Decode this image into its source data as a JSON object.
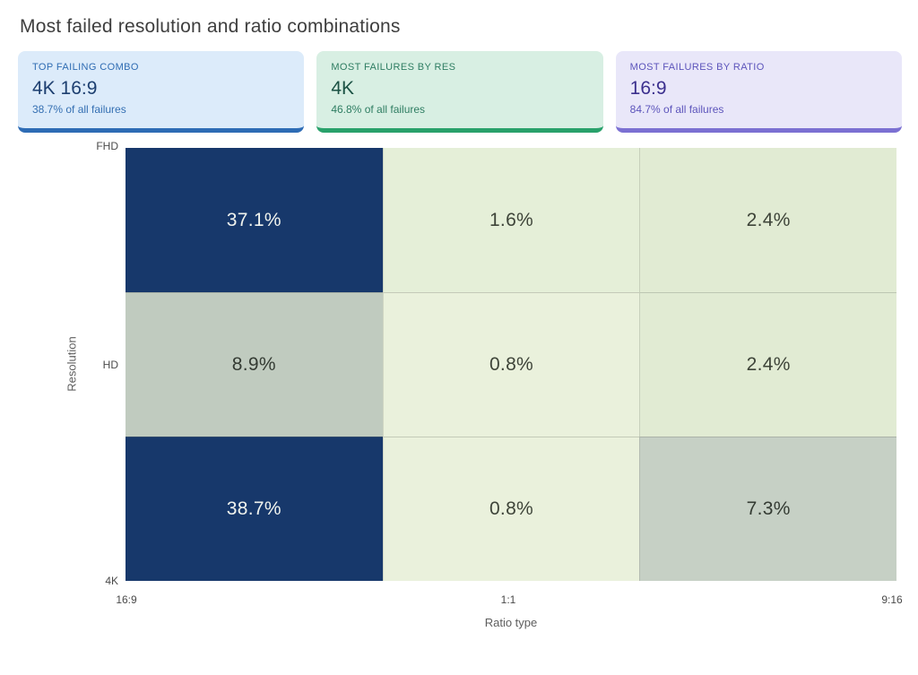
{
  "title": "Most failed resolution and ratio combinations",
  "cards": [
    {
      "label": "TOP FAILING COMBO",
      "value": "4K 16:9",
      "sub": "38.7% of all failures",
      "bg": "#dcebfa",
      "accent": "#2e6cb5",
      "label_color": "#2f6cb3",
      "value_color": "#1d3f70",
      "sub_color": "#346fb2"
    },
    {
      "label": "MOST FAILURES BY RES",
      "value": "4K",
      "sub": "46.8% of all failures",
      "bg": "#d8efe3",
      "accent": "#29a16b",
      "label_color": "#2e7d62",
      "value_color": "#1b5244",
      "sub_color": "#2e7d62"
    },
    {
      "label": "MOST FAILURES BY RATIO",
      "value": "16:9",
      "sub": "84.7% of all failures",
      "bg": "#e9e7f9",
      "accent": "#7b70d2",
      "label_color": "#5c54bb",
      "value_color": "#3b2f8e",
      "sub_color": "#5c54bb"
    }
  ],
  "chart_data": {
    "type": "heatmap",
    "title": "Most failed resolution and ratio combinations",
    "xlabel": "Ratio type",
    "ylabel": "Resolution",
    "x_categories": [
      "16:9",
      "1:1",
      "9:16"
    ],
    "y_categories": [
      "FHD",
      "HD",
      "4K"
    ],
    "unit": "% of all failures",
    "series": [
      {
        "name": "FHD",
        "values": [
          37.1,
          1.6,
          2.4
        ]
      },
      {
        "name": "HD",
        "values": [
          8.9,
          0.8,
          2.4
        ]
      },
      {
        "name": "4K",
        "values": [
          38.7,
          0.8,
          7.3
        ]
      }
    ],
    "cell_labels": [
      [
        "37.1%",
        "1.6%",
        "2.4%"
      ],
      [
        "8.9%",
        "0.8%",
        "2.4%"
      ],
      [
        "38.7%",
        "0.8%",
        "7.3%"
      ]
    ],
    "cell_colors": [
      [
        "#17386b",
        "#e5efd8",
        "#e1ebd3"
      ],
      [
        "#c0cbbf",
        "#eaf1dc",
        "#e1ebd3"
      ],
      [
        "#17386b",
        "#eaf1dc",
        "#c6d0c5"
      ]
    ],
    "cell_text_colors": [
      [
        "#f0f3ee",
        "#3e4439",
        "#3e4439"
      ],
      [
        "#343b33",
        "#3e4439",
        "#3e4439"
      ],
      [
        "#f0f3ee",
        "#3e4439",
        "#343b33"
      ]
    ],
    "layout": {
      "grid": "off",
      "legend": "none",
      "color_scale": "light-green (low) to dark-navy (high)"
    }
  }
}
